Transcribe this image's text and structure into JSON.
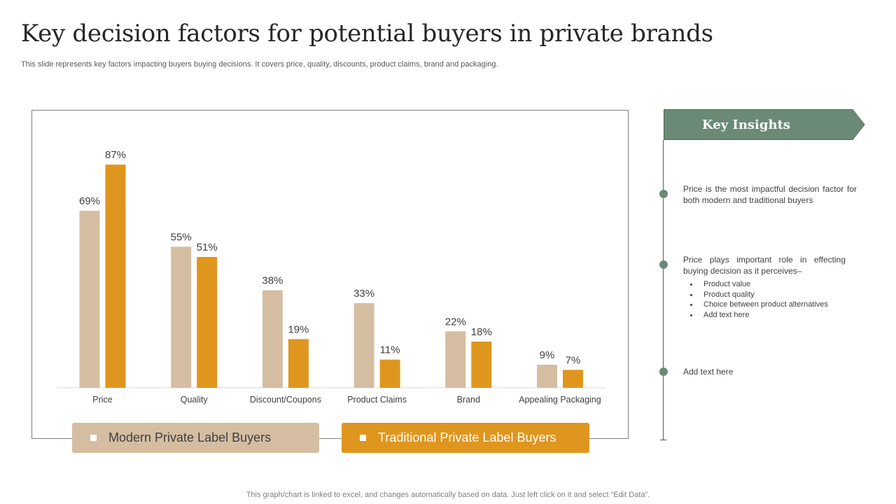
{
  "page": {
    "title": "Key decision factors for potential buyers in private brands",
    "subtitle": "This slide represents key factors impacting buyers buying decisions. It covers price, quality, discounts, product claims, brand and packaging.",
    "footer": "This graph/chart is linked to excel,  and changes automatically based on data. Just left click on it and select “Edit Data”."
  },
  "chart_data": {
    "type": "bar",
    "categories": [
      "Price",
      "Quality",
      "Discount/Coupons",
      "Product Claims",
      "Brand",
      "Appealing Packaging"
    ],
    "series": [
      {
        "name": "Modern Private Label Buyers",
        "values": [
          69,
          55,
          38,
          33,
          22,
          9
        ],
        "labels": [
          "69%",
          "55%",
          "38%",
          "33%",
          "22%",
          "9%"
        ],
        "color": "#d5bda2"
      },
      {
        "name": "Traditional Private Label Buyers",
        "values": [
          87,
          51,
          19,
          11,
          18,
          7
        ],
        "labels": [
          "87%",
          "51%",
          "19%",
          "11%",
          "18%",
          "7%"
        ],
        "color": "#df961f"
      }
    ],
    "ylim": [
      0,
      100
    ],
    "grid": false,
    "legend_placement": "bottom"
  },
  "insights": {
    "title": "Key Insights",
    "banner_color": "#6b8a76",
    "items": [
      {
        "text": "Price is the most impactful decision factor for both modern and traditional buyers"
      },
      {
        "text": "Price plays important role in effecting buying decision as it perceives–",
        "bullets": [
          "Product value",
          "Product quality",
          "Choice between product alternatives",
          "Add text here"
        ]
      },
      {
        "text": "Add text here"
      }
    ]
  }
}
